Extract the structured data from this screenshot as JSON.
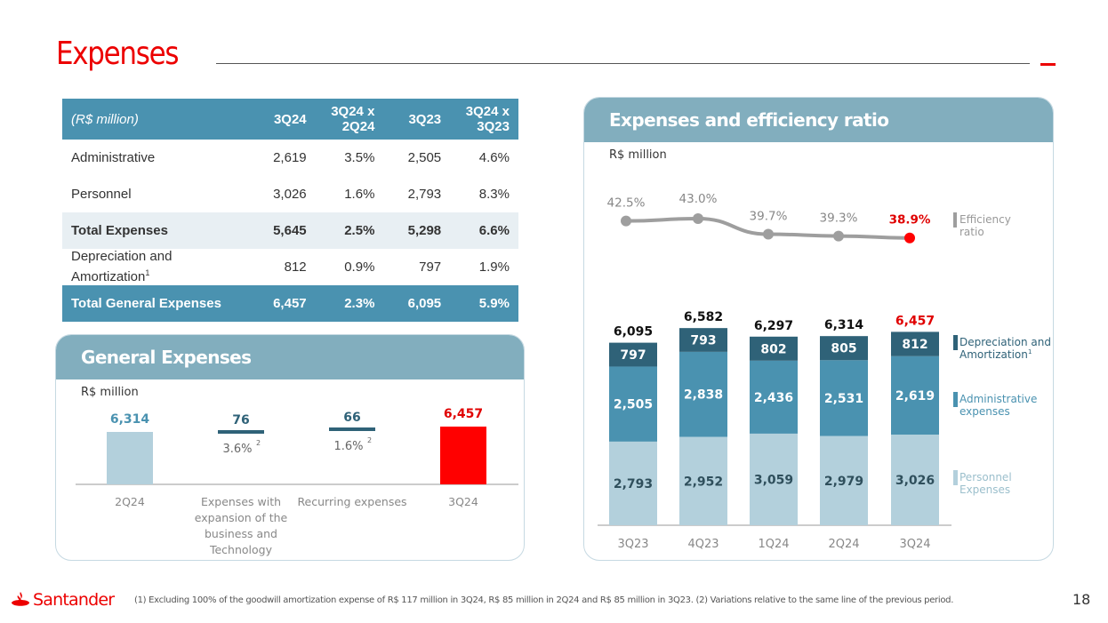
{
  "header": {
    "title": "Expenses"
  },
  "table": {
    "columns": [
      "(R$ million)",
      "3Q24",
      "3Q24 x 2Q24",
      "3Q23",
      "3Q24 x 3Q23"
    ],
    "column_lines": [
      [
        "(R$ million)"
      ],
      [
        "3Q24"
      ],
      [
        "3Q24 x",
        "2Q24"
      ],
      [
        "3Q23"
      ],
      [
        "3Q24 x",
        "3Q23"
      ]
    ],
    "rows": [
      {
        "label": "Administrative",
        "values": [
          "2,619",
          "3.5%",
          "2,505",
          "4.6%"
        ],
        "style": "normal"
      },
      {
        "label": "Personnel",
        "values": [
          "3,026",
          "1.6%",
          "2,793",
          "8.3%"
        ],
        "style": "normal"
      },
      {
        "label": "Total Expenses",
        "values": [
          "5,645",
          "2.5%",
          "5,298",
          "6.6%"
        ],
        "style": "subtotal"
      },
      {
        "label": "Depreciation and Amortization",
        "label_line1": "Depreciation and",
        "label_line2": "Amortization",
        "sup": "1",
        "values": [
          "812",
          "0.9%",
          "797",
          "1.9%"
        ],
        "style": "normal"
      },
      {
        "label": "Total General Expenses",
        "values": [
          "6,457",
          "2.3%",
          "6,095",
          "5.9%"
        ],
        "style": "total"
      }
    ]
  },
  "general_expenses": {
    "title": "General Expenses",
    "unit": "R$ million"
  },
  "efficiency": {
    "title": "Expenses and efficiency ratio",
    "unit": "R$ million"
  },
  "colors": {
    "brand_red": "#ec0000",
    "highlight_red": "#ff0000",
    "personnel": "#b3d0dc",
    "administrative": "#4a92b0",
    "depreciation": "#2f6278",
    "efficiency_line": "#9e9e9e",
    "header_blue": "#4a92b0",
    "panel_header": "#82aebe"
  },
  "chart_data": [
    {
      "type": "bar",
      "title": "General Expenses",
      "subtype": "waterfall",
      "ylabel": "R$ million",
      "categories": [
        "2Q24",
        "Expenses with expansion of the business and Technology",
        "Recurring expenses",
        "3Q24"
      ],
      "category_lines": [
        [
          "2Q24"
        ],
        [
          "Expenses with",
          "expansion of the",
          "business and",
          "Technology"
        ],
        [
          "Recurring expenses"
        ],
        [
          "3Q24"
        ]
      ],
      "values": [
        6314,
        76,
        66,
        6457
      ],
      "value_labels": [
        "6,314",
        "76",
        "66",
        "6,457"
      ],
      "percent_labels": [
        "",
        "3.6%",
        "1.6%",
        ""
      ],
      "percent_sup": "2",
      "kinds": [
        "total",
        "delta",
        "delta",
        "total"
      ]
    },
    {
      "type": "bar",
      "subtype": "stacked",
      "title": "Expenses and efficiency ratio",
      "ylabel": "R$ million",
      "categories": [
        "3Q23",
        "4Q23",
        "1Q24",
        "2Q24",
        "3Q24"
      ],
      "series": [
        {
          "name": "Personnel Expenses",
          "legend_lines": [
            "Personnel",
            "Expenses"
          ],
          "values": [
            2793,
            2952,
            3059,
            2979,
            3026
          ],
          "labels": [
            "2,793",
            "2,952",
            "3,059",
            "2,979",
            "3,026"
          ]
        },
        {
          "name": "Administrative expenses",
          "legend_lines": [
            "Administrative",
            "expenses"
          ],
          "values": [
            2505,
            2838,
            2436,
            2531,
            2619
          ],
          "labels": [
            "2,505",
            "2,838",
            "2,436",
            "2,531",
            "2,619"
          ]
        },
        {
          "name": "Depreciation and Amortization",
          "legend_lines": [
            "Depreciation and",
            "Amortization"
          ],
          "legend_sup": "1",
          "values": [
            797,
            793,
            802,
            805,
            812
          ],
          "labels": [
            "797",
            "793",
            "802",
            "805",
            "812"
          ]
        }
      ],
      "totals": [
        6095,
        6582,
        6297,
        6314,
        6457
      ],
      "total_labels": [
        "6,095",
        "6,582",
        "6,297",
        "6,314",
        "6,457"
      ],
      "ylim": [
        0,
        7000
      ]
    },
    {
      "type": "line",
      "title": "Efficiency ratio",
      "legend_lines": [
        "Efficiency",
        "ratio"
      ],
      "categories": [
        "3Q23",
        "4Q23",
        "1Q24",
        "2Q24",
        "3Q24"
      ],
      "values": [
        42.5,
        43.0,
        39.7,
        39.3,
        38.9
      ],
      "labels": [
        "42.5%",
        "43.0%",
        "39.7%",
        "39.3%",
        "38.9%"
      ],
      "ylim": [
        38.5,
        43.5
      ]
    }
  ],
  "footer": {
    "logo": "Santander",
    "footnote": "(1) Excluding 100% of the goodwill amortization expense of R$ 117 million in 3Q24, R$ 85 million in 2Q24 and R$ 85 million in 3Q23. (2) Variations relative to the same line of the previous period.",
    "page_number": "18"
  }
}
